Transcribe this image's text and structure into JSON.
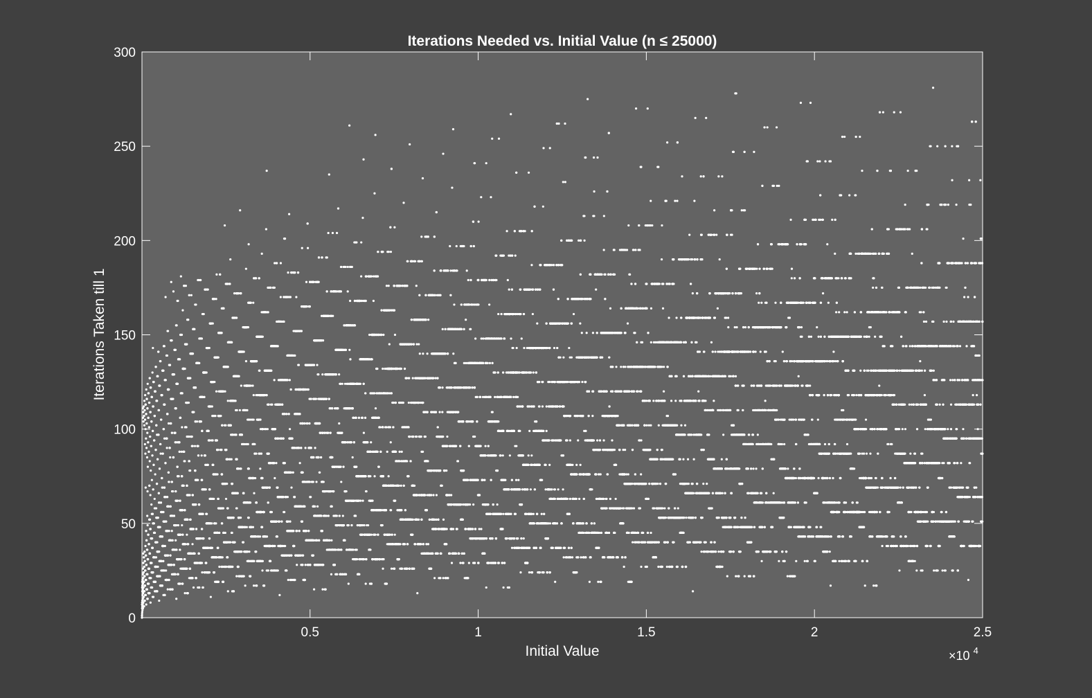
{
  "chart_data": {
    "type": "scatter",
    "title": "Iterations Needed vs. Initial Value (n ≤ 25000)",
    "xlabel": "Initial Value",
    "ylabel": "Iterations Taken till 1",
    "xlim": [
      1,
      25000
    ],
    "ylim": [
      0,
      300
    ],
    "x_tick_values": [
      5000,
      10000,
      15000,
      20000,
      25000
    ],
    "x_tick_labels": [
      "0.5",
      "1",
      "1.5",
      "2",
      "2.5"
    ],
    "x_exponent_base": "×10",
    "x_exponent_power": "4",
    "y_tick_values": [
      0,
      50,
      100,
      150,
      200,
      250,
      300
    ],
    "y_tick_labels": [
      "0",
      "50",
      "100",
      "150",
      "200",
      "250",
      "300"
    ],
    "grid": false,
    "series": [
      {
        "generator": "collatz_stopping_time",
        "n_min": 1,
        "n_max": 25000,
        "marker": "dot",
        "color": "#ffffff"
      }
    ]
  },
  "colors": {
    "figure_background": "#404040",
    "axes_background": "#636363",
    "foreground": "#ffffff"
  }
}
